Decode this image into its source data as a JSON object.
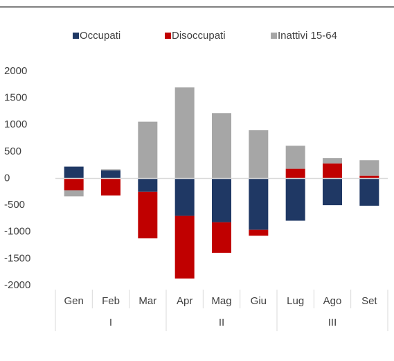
{
  "chart_data": {
    "type": "bar",
    "stacked": true,
    "categories": [
      "Gen",
      "Feb",
      "Mar",
      "Apr",
      "Mag",
      "Giu",
      "Lug",
      "Ago",
      "Set"
    ],
    "category_groups": [
      "I",
      "I",
      "I",
      "II",
      "II",
      "II",
      "III",
      "III",
      "III"
    ],
    "series": [
      {
        "name": "Occupati",
        "color": "#1f3864",
        "values": [
          220,
          150,
          -250,
          -700,
          -820,
          -960,
          -790,
          -500,
          -510
        ]
      },
      {
        "name": "Disoccupati",
        "color": "#c00000",
        "values": [
          -220,
          -320,
          -870,
          -1170,
          -570,
          -110,
          180,
          280,
          50
        ]
      },
      {
        "name": "Inattivi 15-64",
        "color": "#a6a6a6",
        "values": [
          -115,
          20,
          1060,
          1700,
          1220,
          900,
          430,
          100,
          290
        ]
      }
    ],
    "ylim": [
      -2000,
      2000
    ],
    "yticks": [
      -2000,
      -1500,
      -1000,
      -500,
      0,
      500,
      1000,
      1500,
      2000
    ],
    "legend": "top"
  }
}
